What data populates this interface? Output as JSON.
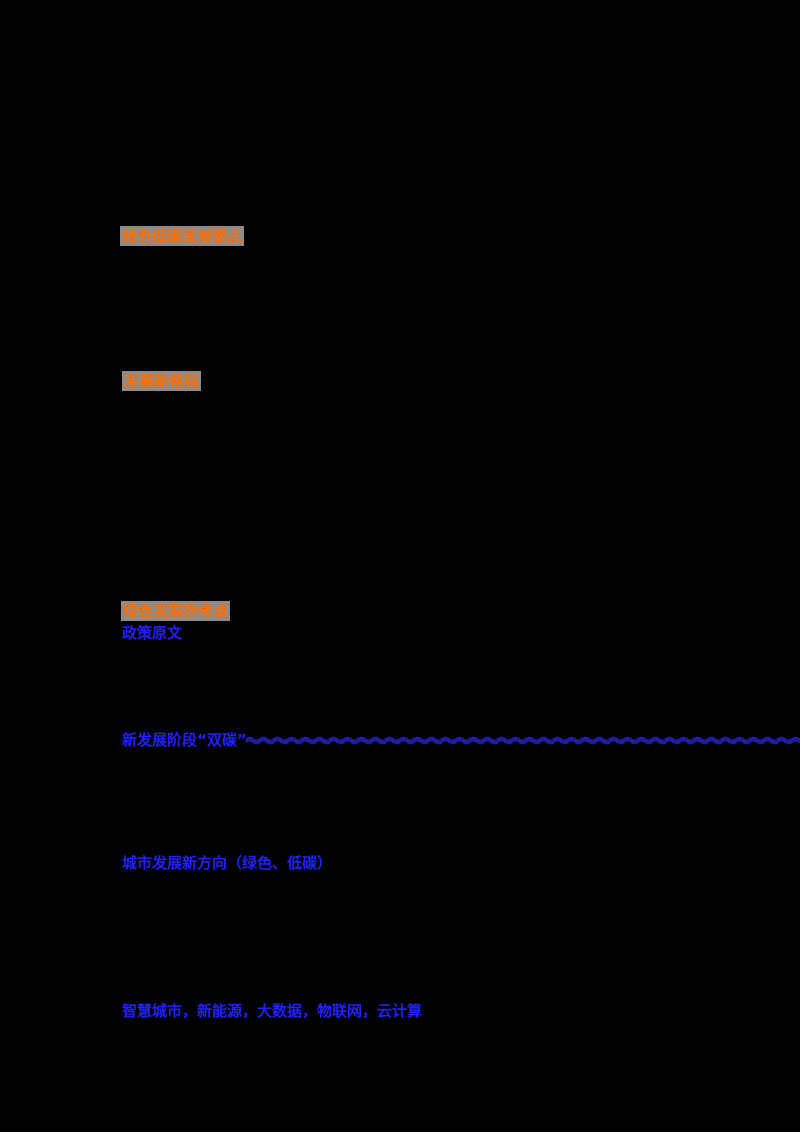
{
  "page": {
    "background": "#000000",
    "note": "black page; body text invisible, only colored annotations visible"
  },
  "colors": {
    "orange": "#ff6d00",
    "highlight_gray": "#8c8c8c",
    "blue": "#2121ff",
    "underline_navy": "#1e1e9c"
  },
  "document": {
    "highlighted_headings": [
      {
        "text": "绿色低碳发展要点"
      },
      {
        "text": "发展新格局"
      },
      {
        "text": "绿色发展新考点"
      }
    ],
    "blue_terms": [
      {
        "text": "政策原文"
      },
      {
        "text": "新发展阶段“双碳”"
      },
      {
        "text": "城市发展新方向（绿色、低碳）"
      },
      {
        "text": "智慧城市，新能源，大数据，物联网，云计算"
      }
    ],
    "underline": {
      "style": "wavy",
      "color": "#1e1e9c"
    }
  }
}
